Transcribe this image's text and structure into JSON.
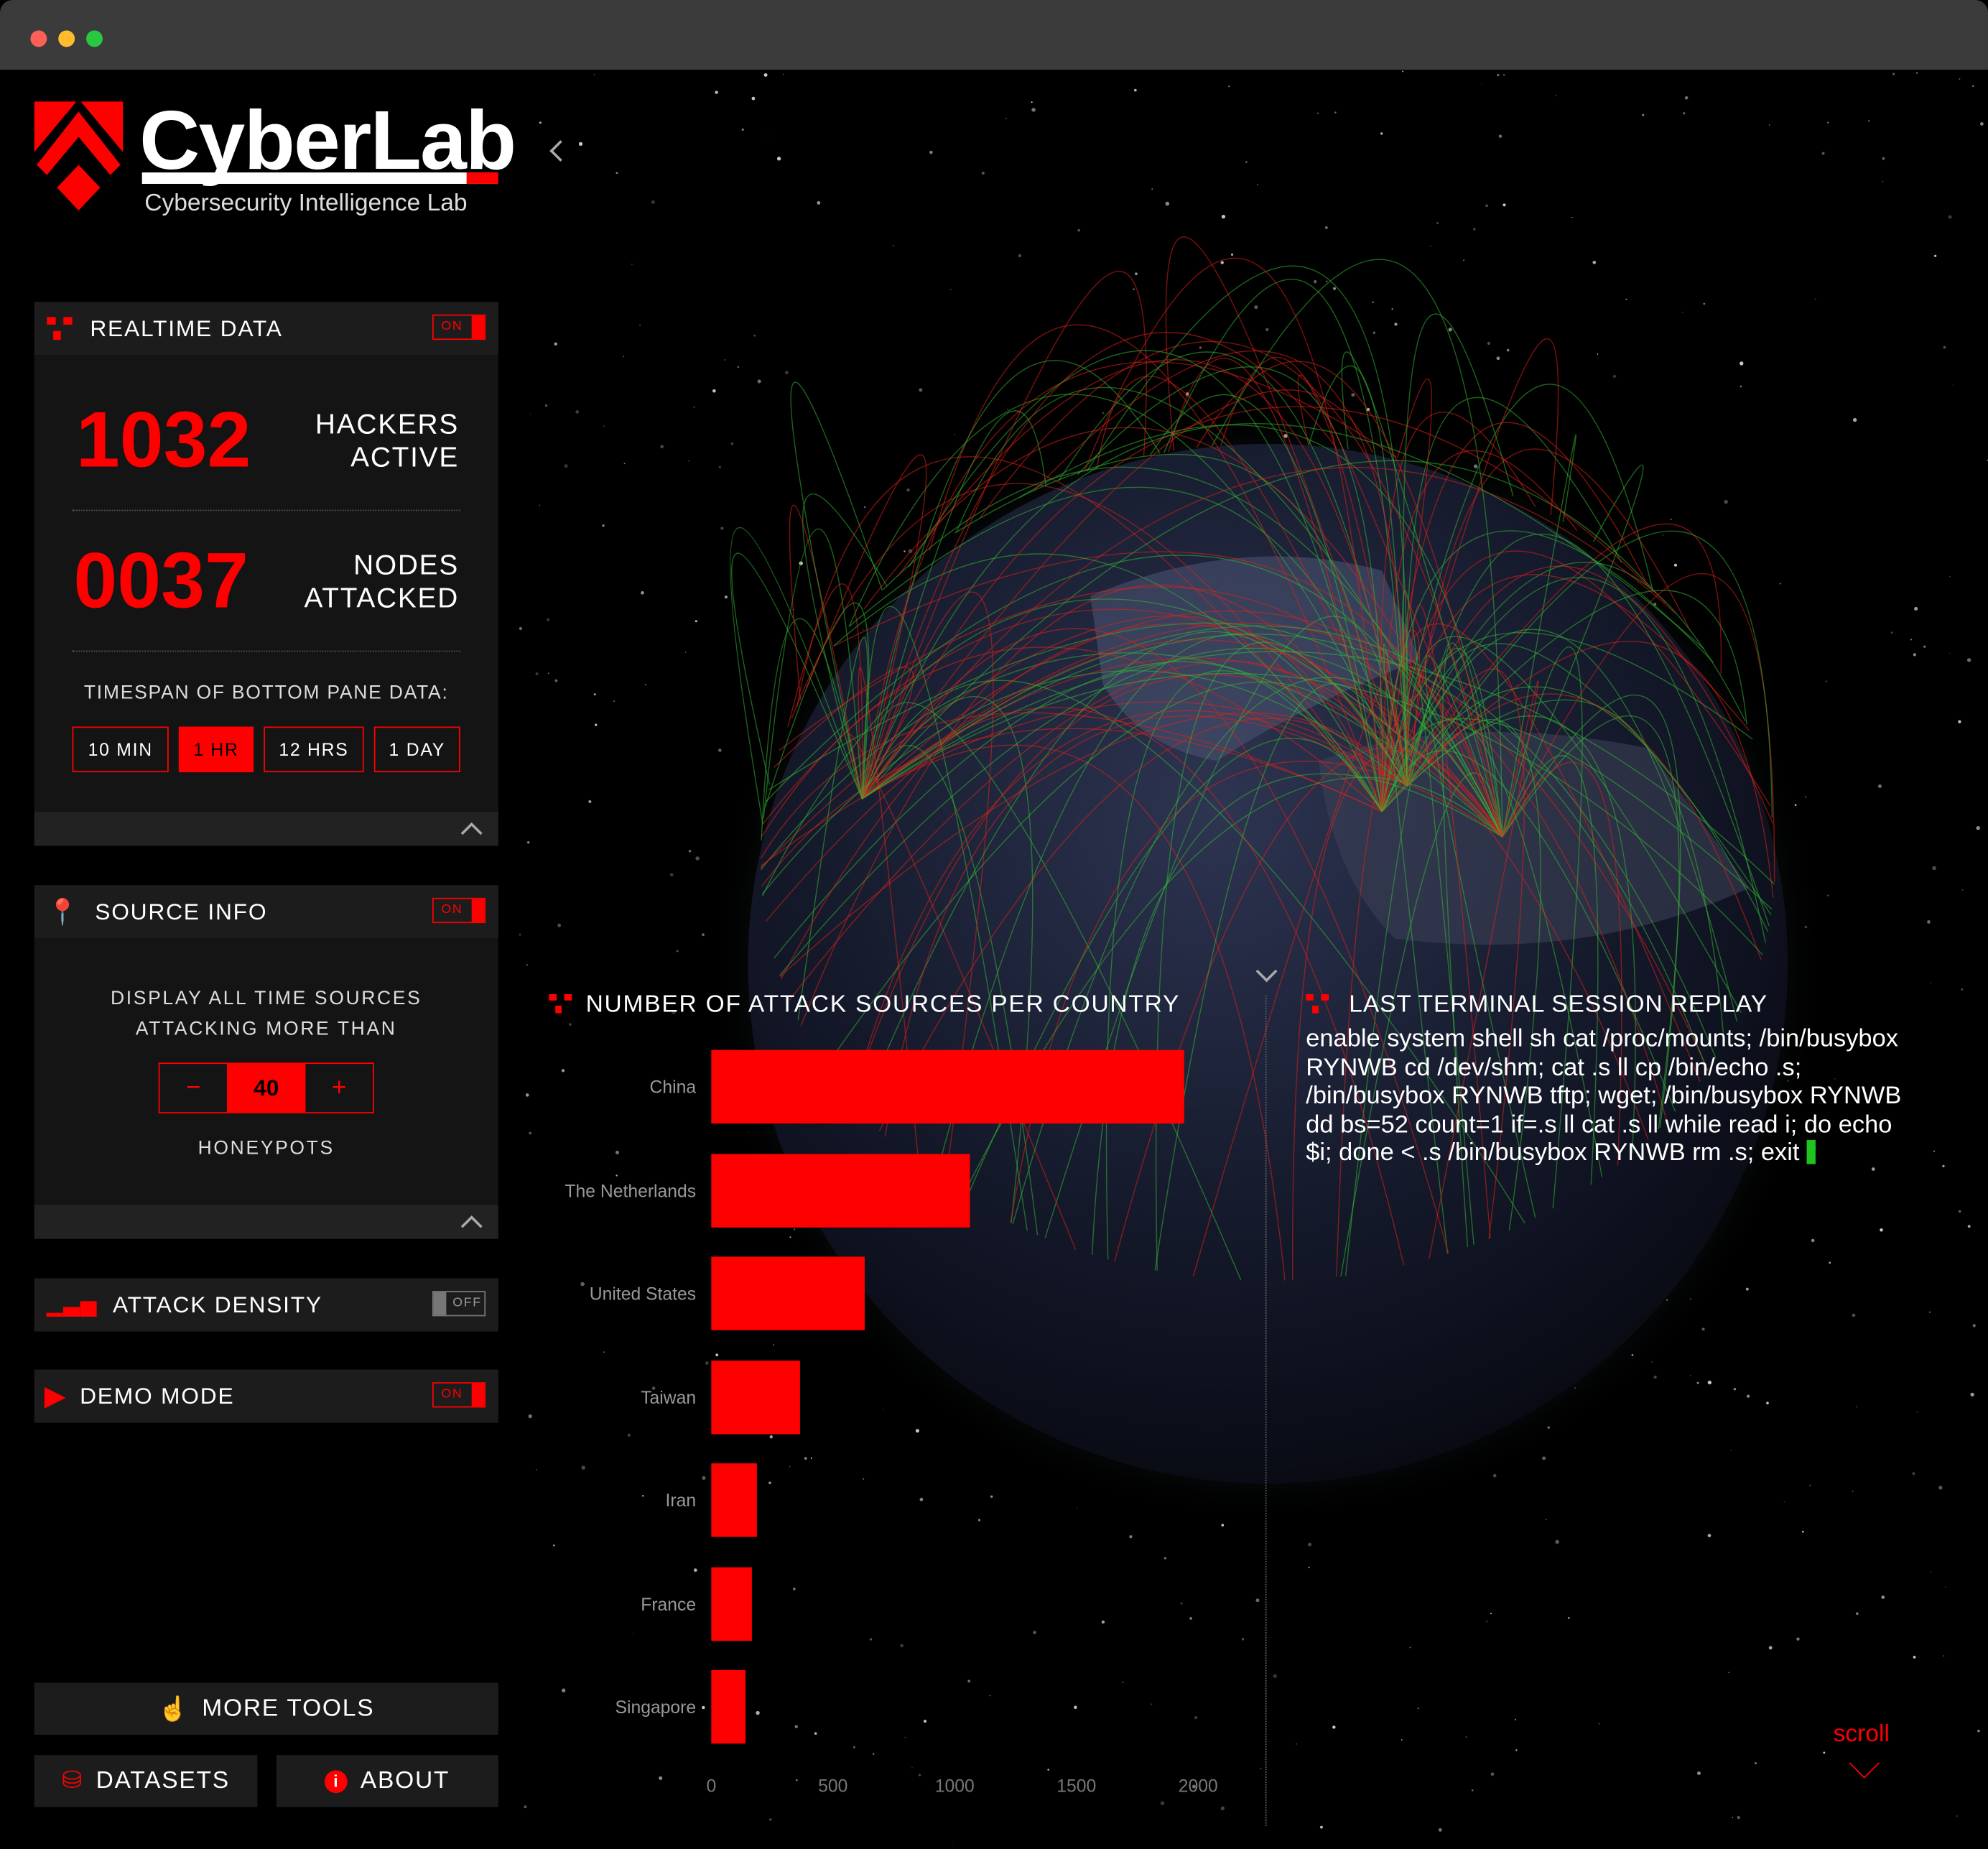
{
  "window": {
    "controls": [
      "close",
      "minimize",
      "maximize"
    ]
  },
  "brand": {
    "name": "CyberLab",
    "tagline": "Cybersecurity Intelligence Lab"
  },
  "sidebar": {
    "realtime": {
      "title": "REALTIME DATA",
      "toggle": "ON",
      "hackers": {
        "value": "1032",
        "label_1": "HACKERS",
        "label_2": "ACTIVE"
      },
      "nodes": {
        "value": "0037",
        "label_1": "NODES",
        "label_2": "ATTACKED"
      },
      "timespan_label": "TIMESPAN OF BOTTOM PANE DATA:",
      "timespans": [
        {
          "label": "10 MIN",
          "active": false
        },
        {
          "label": "1 HR",
          "active": true
        },
        {
          "label": "12 HRS",
          "active": false
        },
        {
          "label": "1 DAY",
          "active": false
        }
      ]
    },
    "source_info": {
      "title": "SOURCE INFO",
      "toggle": "ON",
      "desc_1": "DISPLAY ALL TIME SOURCES",
      "desc_2": "ATTACKING MORE THAN",
      "minus": "−",
      "value": "40",
      "plus": "+",
      "unit": "HONEYPOTS"
    },
    "attack_density": {
      "title": "ATTACK DENSITY",
      "toggle": "OFF"
    },
    "demo_mode": {
      "title": "DEMO MODE",
      "toggle": "ON"
    },
    "more_tools": "MORE TOOLS",
    "datasets": "DATASETS",
    "about": "ABOUT"
  },
  "colors": {
    "accent": "#ff0000",
    "panel": "#1c1c1c",
    "cursor": "#1ec31e"
  },
  "chart_data": {
    "type": "bar",
    "orientation": "horizontal",
    "title": "NUMBER OF ATTACK SOURCES PER COUNTRY",
    "categories": [
      "China",
      "The Netherlands",
      "United States",
      "Taiwan",
      "Iran",
      "France",
      "Singapore"
    ],
    "values": [
      1945,
      1065,
      630,
      362,
      190,
      165,
      142
    ],
    "xlim": [
      0,
      2000
    ],
    "xticks": [
      "0",
      "500",
      "1000",
      "1500",
      "2000"
    ],
    "grid": false,
    "bar_color": "#ff0000"
  },
  "terminal": {
    "title": "LAST TERMINAL SESSION REPLAY",
    "lines": [
      "enable system shell sh cat /proc/mounts; /bin/busybox",
      "RYNWB cd /dev/shm; cat .s ll cp /bin/echo .s;",
      "/bin/busybox RYNWB tftp; wget; /bin/busybox RYNWB",
      "dd bs=52 count=1 if=.s ll cat .s ll while read i; do echo",
      "$i; done < .s /bin/busybox RYNWB rm .s; exit"
    ]
  },
  "scroll_label": "scroll"
}
